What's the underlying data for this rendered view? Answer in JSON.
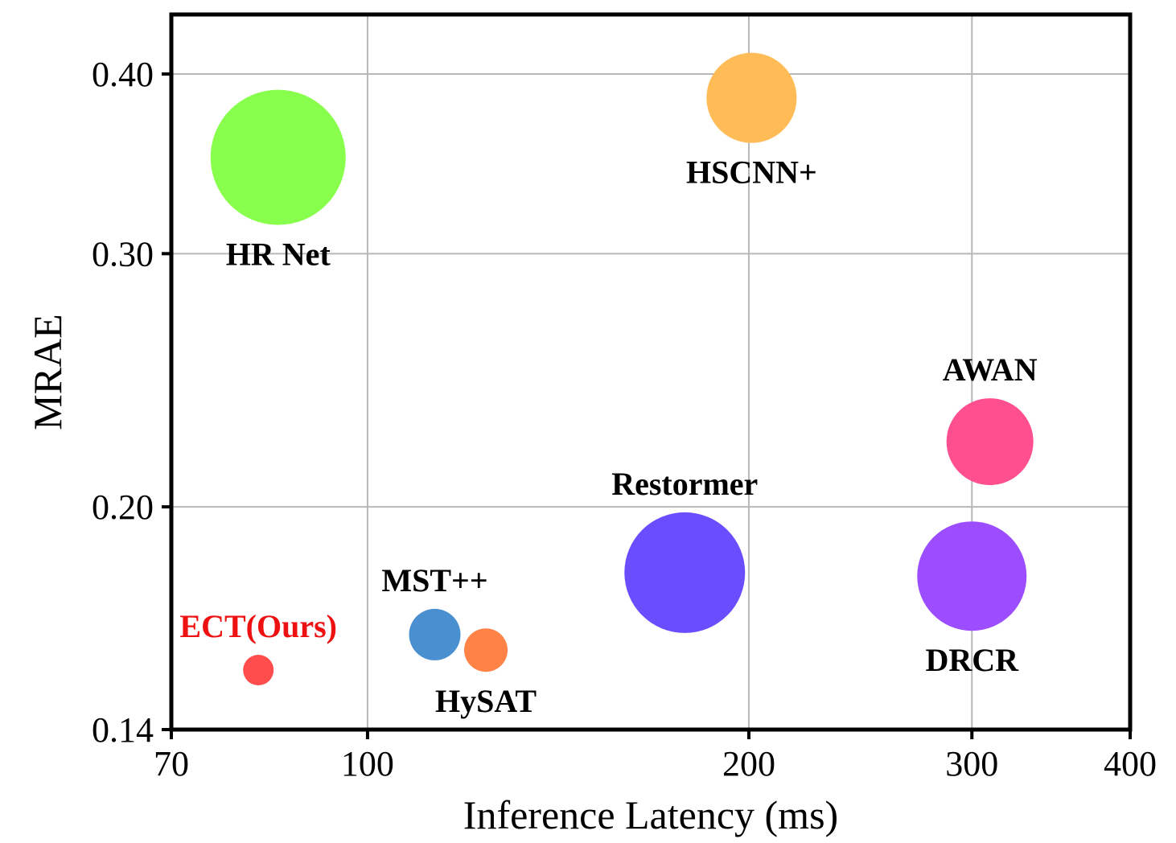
{
  "chart_data": {
    "type": "scatter",
    "title": "",
    "xlabel": "Inference Latency (ms)",
    "ylabel": "MRAE",
    "x_scale": "log",
    "y_scale": "log",
    "xlim": [
      70,
      400
    ],
    "ylim": [
      0.14,
      0.44
    ],
    "xticks": [
      70,
      100,
      200,
      300,
      400
    ],
    "xtick_labels": [
      "70",
      "100",
      "200",
      "300",
      "400"
    ],
    "yticks": [
      0.14,
      0.2,
      0.3,
      0.4
    ],
    "ytick_labels": [
      "0.14",
      "0.20",
      "0.30",
      "0.40"
    ],
    "grid": true,
    "points": [
      {
        "name": "HR Net",
        "x": 85,
        "y": 0.35,
        "size": 84,
        "color": "#88ff4d",
        "label_color": "#000000",
        "label_position": "below"
      },
      {
        "name": "HSCNN+",
        "x": 201,
        "y": 0.385,
        "size": 56,
        "color": "#ffbb55",
        "label_color": "#000000",
        "label_position": "below"
      },
      {
        "name": "AWAN",
        "x": 310,
        "y": 0.222,
        "size": 54,
        "color": "#ff4f8f",
        "label_color": "#000000",
        "label_position": "above"
      },
      {
        "name": "Restormer",
        "x": 178,
        "y": 0.18,
        "size": 75,
        "color": "#6a4dff",
        "label_color": "#000000",
        "label_position": "above"
      },
      {
        "name": "DRCR",
        "x": 300,
        "y": 0.179,
        "size": 68,
        "color": "#9b4dff",
        "label_color": "#000000",
        "label_position": "below"
      },
      {
        "name": "MST++",
        "x": 113,
        "y": 0.163,
        "size": 32,
        "color": "#4a8fd0",
        "label_color": "#000000",
        "label_position": "above"
      },
      {
        "name": "HySAT",
        "x": 124,
        "y": 0.159,
        "size": 27,
        "color": "#ff8246",
        "label_color": "#000000",
        "label_position": "below"
      },
      {
        "name": "ECT(Ours)",
        "x": 82,
        "y": 0.154,
        "size": 19,
        "color": "#ff4d4d",
        "label_color": "#ee1111",
        "label_position": "above"
      }
    ]
  }
}
